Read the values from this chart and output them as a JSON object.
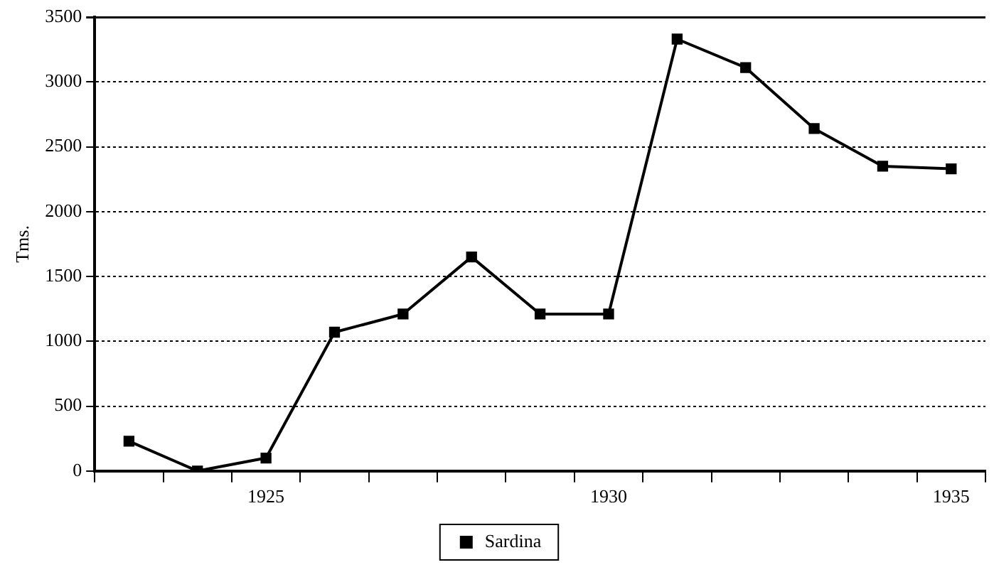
{
  "chart_data": {
    "type": "line",
    "ylabel": "Tms.",
    "categories": [
      null,
      null,
      "1925",
      null,
      null,
      null,
      null,
      "1930",
      null,
      null,
      null,
      null,
      "1935"
    ],
    "series": [
      {
        "name": "Sardina",
        "color": "#000000",
        "values": [
          230,
          0,
          100,
          1070,
          1210,
          1650,
          1210,
          1210,
          3330,
          3110,
          2640,
          2350,
          2330
        ]
      }
    ],
    "ylim": [
      0,
      3500
    ],
    "yticks": [
      0,
      500,
      1000,
      1500,
      2000,
      2500,
      3000,
      3500
    ],
    "grid": "y",
    "legend": "bottom",
    "marker": "square",
    "line_style": "solid"
  }
}
